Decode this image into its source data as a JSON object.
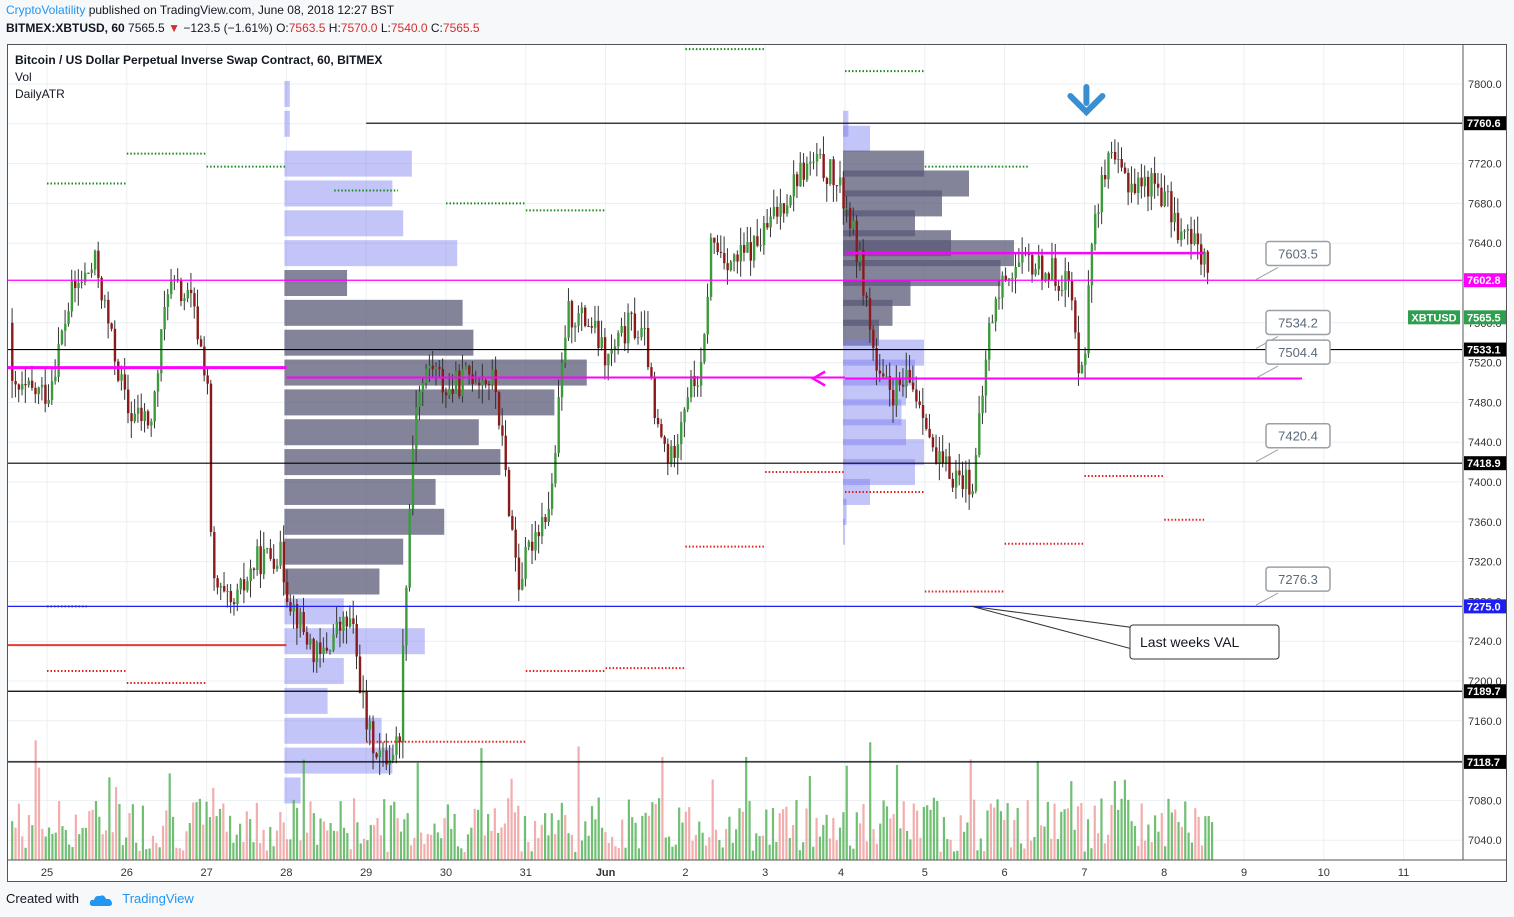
{
  "header": {
    "author": "CryptoVolatility",
    "published": " published on TradingView.com, June 08, 2018 12:27 BST",
    "symbol": "BITMEX:XBTUSD, 60",
    "last": "7565.5",
    "down_arrow": "▼",
    "change": "−123.5 (−1.61%)",
    "o_label": "O:",
    "o_value": "7563.5",
    "h_label": "H:",
    "h_value": "7570.0",
    "l_label": "L:",
    "l_value": "7540.0",
    "c_label": "C:",
    "c_value": "7565.5"
  },
  "legend": {
    "title": "Bitcoin / US Dollar Perpetual Inverse Swap Contract, 60, BITMEX",
    "vol": "Vol",
    "atr": "DailyATR"
  },
  "footer": {
    "created_with": "Created with",
    "brand": "TradingView",
    "logo_icon": "tradingview-cloud-icon"
  },
  "colors": {
    "up": "#26a69a",
    "down": "#ef5350",
    "magenta": "#ff00ff",
    "blue_line": "#1e1ef0",
    "vp_blue": "#7b7cf0",
    "vp_gray": "#5a5a78"
  },
  "chart_data": {
    "type": "candlestick",
    "ylim": [
      7000,
      7840
    ],
    "y_ticks": [
      "7800.0",
      "7760.0",
      "7720.0",
      "7680.0",
      "7640.0",
      "7600.0",
      "7560.0",
      "7520.0",
      "7480.0",
      "7440.0",
      "7400.0",
      "7360.0",
      "7320.0",
      "7280.0",
      "7240.0",
      "7200.0",
      "7160.0",
      "7120.0",
      "7080.0",
      "7040.0"
    ],
    "x_ticks": [
      "25",
      "26",
      "27",
      "28",
      "29",
      "30",
      "31",
      "Jun",
      "2",
      "3",
      "4",
      "5",
      "6",
      "7",
      "8",
      "9",
      "10",
      "11"
    ],
    "price_tags": [
      {
        "text": "7760.6",
        "value": 7760.6,
        "style": "black"
      },
      {
        "text": "7602.8",
        "value": 7602.8,
        "style": "magenta"
      },
      {
        "text": "7565.5",
        "value": 7565.5,
        "style": "green",
        "label": "XBTUSD"
      },
      {
        "text": "7533.1",
        "value": 7533.1,
        "style": "black"
      },
      {
        "text": "7418.9",
        "value": 7418.9,
        "style": "black"
      },
      {
        "text": "7275.0",
        "value": 7275.0,
        "style": "blue"
      },
      {
        "text": "7189.7",
        "value": 7189.7,
        "style": "black"
      },
      {
        "text": "7118.7",
        "value": 7118.7,
        "style": "black"
      }
    ],
    "horizontal_lines": [
      {
        "value": 7760.6,
        "color": "#000000",
        "from_day": 4.0
      },
      {
        "value": 7602.8,
        "color": "#ff00ff",
        "from_day": 0
      },
      {
        "value": 7533.1,
        "color": "#000000",
        "from_day": 0
      },
      {
        "value": 7418.9,
        "color": "#000000",
        "from_day": 0
      },
      {
        "value": 7275.0,
        "color": "#1e1ef0",
        "from_day": 0
      },
      {
        "value": 7189.7,
        "color": "#000000",
        "from_day": 0
      },
      {
        "value": 7118.7,
        "color": "#000000",
        "from_day": 0
      }
    ],
    "callouts": [
      {
        "text": "7603.5",
        "value": 7603.5
      },
      {
        "text": "7534.2",
        "value": 7534.2
      },
      {
        "text": "7504.4",
        "value": 7504.4
      },
      {
        "text": "7420.4",
        "value": 7420.4
      },
      {
        "text": "7276.3",
        "value": 7276.3
      }
    ],
    "annotation": {
      "text": "Last weeks VAL",
      "points_to_value": 7275.0
    },
    "path": [
      [
        0,
        7490
      ],
      [
        0.3,
        7590
      ],
      [
        0.6,
        7620
      ],
      [
        0.8,
        7540
      ],
      [
        1.0,
        7470
      ],
      [
        1.3,
        7460
      ],
      [
        1.5,
        7600
      ],
      [
        1.8,
        7580
      ],
      [
        2.0,
        7500
      ],
      [
        2.05,
        7300
      ],
      [
        2.3,
        7270
      ],
      [
        2.6,
        7320
      ],
      [
        2.9,
        7330
      ],
      [
        3.0,
        7290
      ],
      [
        3.2,
        7250
      ],
      [
        3.4,
        7220
      ],
      [
        3.6,
        7250
      ],
      [
        3.8,
        7260
      ],
      [
        4.0,
        7150
      ],
      [
        4.2,
        7120
      ],
      [
        4.4,
        7140
      ],
      [
        4.5,
        7330
      ],
      [
        4.6,
        7480
      ],
      [
        4.8,
        7520
      ],
      [
        5.0,
        7490
      ],
      [
        5.3,
        7510
      ],
      [
        5.6,
        7500
      ],
      [
        5.8,
        7360
      ],
      [
        5.9,
        7300
      ],
      [
        6.1,
        7350
      ],
      [
        6.3,
        7380
      ],
      [
        6.5,
        7570
      ],
      [
        6.8,
        7560
      ],
      [
        7.0,
        7520
      ],
      [
        7.3,
        7560
      ],
      [
        7.5,
        7540
      ],
      [
        7.6,
        7460
      ],
      [
        7.8,
        7420
      ],
      [
        8.0,
        7490
      ],
      [
        8.2,
        7510
      ],
      [
        8.3,
        7640
      ],
      [
        8.6,
        7620
      ],
      [
        8.9,
        7640
      ],
      [
        9.2,
        7680
      ],
      [
        9.4,
        7710
      ],
      [
        9.6,
        7720
      ],
      [
        9.8,
        7710
      ],
      [
        10.0,
        7680
      ],
      [
        10.2,
        7610
      ],
      [
        10.4,
        7500
      ],
      [
        10.6,
        7490
      ],
      [
        10.8,
        7500
      ],
      [
        11.0,
        7470
      ],
      [
        11.1,
        7420
      ],
      [
        11.3,
        7410
      ],
      [
        11.6,
        7400
      ],
      [
        11.8,
        7560
      ],
      [
        12.0,
        7610
      ],
      [
        12.3,
        7620
      ],
      [
        12.6,
        7610
      ],
      [
        12.8,
        7600
      ],
      [
        12.9,
        7520
      ],
      [
        13.0,
        7540
      ],
      [
        13.1,
        7670
      ],
      [
        13.3,
        7720
      ],
      [
        13.6,
        7700
      ],
      [
        13.9,
        7700
      ],
      [
        14.2,
        7650
      ],
      [
        14.5,
        7630
      ],
      [
        14.6,
        7560
      ]
    ],
    "volume_profiles": [
      {
        "start_day": 3.0,
        "rows": [
          [
            7790,
            5,
            "blue"
          ],
          [
            7760,
            5,
            "blue"
          ],
          [
            7720,
            118,
            "blue"
          ],
          [
            7690,
            100,
            "blue"
          ],
          [
            7660,
            110,
            "blue"
          ],
          [
            7630,
            160,
            "blue"
          ],
          [
            7600,
            58,
            "gray"
          ],
          [
            7570,
            165,
            "gray"
          ],
          [
            7540,
            175,
            "gray"
          ],
          [
            7510,
            280,
            "gray"
          ],
          [
            7480,
            250,
            "gray"
          ],
          [
            7450,
            180,
            "gray"
          ],
          [
            7420,
            200,
            "gray"
          ],
          [
            7390,
            140,
            "gray"
          ],
          [
            7360,
            148,
            "gray"
          ],
          [
            7330,
            110,
            "gray"
          ],
          [
            7300,
            88,
            "gray"
          ],
          [
            7270,
            55,
            "blue"
          ],
          [
            7240,
            130,
            "blue"
          ],
          [
            7210,
            55,
            "blue"
          ],
          [
            7180,
            40,
            "blue"
          ],
          [
            7150,
            90,
            "blue"
          ],
          [
            7120,
            100,
            "blue"
          ],
          [
            7090,
            15,
            "blue"
          ]
        ]
      },
      {
        "start_day": 10.0,
        "rows": [
          [
            7760,
            6,
            "blue"
          ],
          [
            7745,
            30,
            "blue"
          ],
          [
            7720,
            90,
            "gray"
          ],
          [
            7700,
            140,
            "gray"
          ],
          [
            7680,
            110,
            "gray"
          ],
          [
            7660,
            80,
            "gray"
          ],
          [
            7640,
            120,
            "gray"
          ],
          [
            7630,
            190,
            "gray"
          ],
          [
            7610,
            175,
            "gray"
          ],
          [
            7590,
            75,
            "gray"
          ],
          [
            7570,
            55,
            "gray"
          ],
          [
            7550,
            40,
            "gray"
          ],
          [
            7530,
            90,
            "blue"
          ],
          [
            7510,
            80,
            "blue"
          ],
          [
            7490,
            70,
            "blue"
          ],
          [
            7470,
            65,
            "blue"
          ],
          [
            7450,
            70,
            "blue"
          ],
          [
            7430,
            90,
            "blue"
          ],
          [
            7410,
            80,
            "blue"
          ],
          [
            7390,
            30,
            "blue"
          ],
          [
            7370,
            4,
            "blue"
          ],
          [
            7350,
            2,
            "blue"
          ]
        ]
      }
    ]
  }
}
